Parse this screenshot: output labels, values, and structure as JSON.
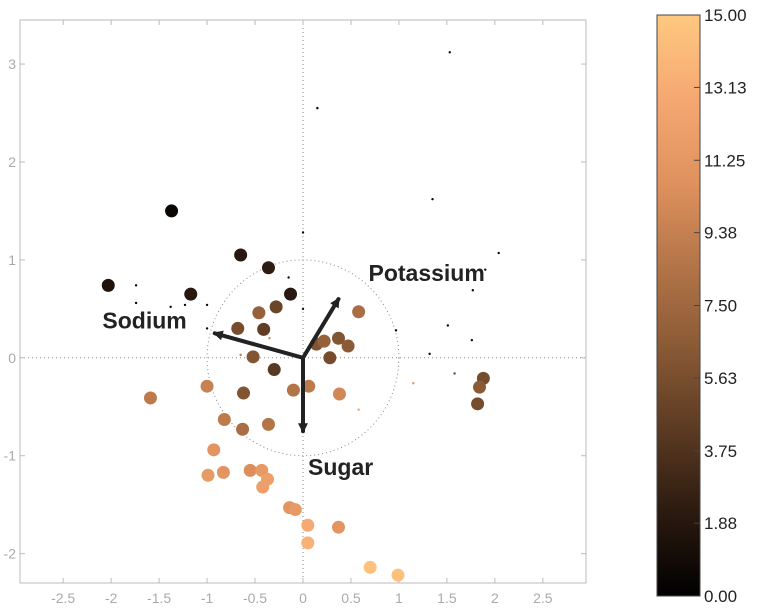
{
  "chart_data": {
    "type": "scatter",
    "title": "",
    "xlabel": "",
    "ylabel": "",
    "xlim": [
      -2.95,
      2.95
    ],
    "ylim": [
      -2.3,
      3.45
    ],
    "x_ticks": [
      "-2.5",
      "-2",
      "-1.5",
      "-1",
      "-0.5",
      "0",
      "0.5",
      "1",
      "1.5",
      "2",
      "2.5"
    ],
    "y_ticks": [
      "-2",
      "-1",
      "0",
      "1",
      "2",
      "3"
    ],
    "grid": false,
    "reference_lines": "dotted lines at x=0 and y=0",
    "unit_circle_radius": 1,
    "colorbar": {
      "min": 0,
      "max": 15,
      "ticks": [
        "0.00",
        "1.88",
        "3.75",
        "5.63",
        "7.50",
        "9.38",
        "11.25",
        "13.13",
        "15.00"
      ],
      "colors": [
        "#000000",
        "#2b1a10",
        "#5b3a22",
        "#8a5a36",
        "#b47548",
        "#e0925e",
        "#f5a872",
        "#ffc880"
      ]
    },
    "loading_vectors": [
      {
        "label": "Potassium",
        "x": 0.37,
        "y": 0.6
      },
      {
        "label": "Sodium",
        "x": -0.92,
        "y": 0.25
      },
      {
        "label": "Sugar",
        "x": 0.0,
        "y": -0.75
      }
    ],
    "points": [
      {
        "x": -1.37,
        "y": 1.5,
        "value": 0.5,
        "size": "large"
      },
      {
        "x": -2.03,
        "y": 0.74,
        "value": 1.5,
        "size": "large"
      },
      {
        "x": -1.17,
        "y": 0.65,
        "value": 2.0,
        "size": "large"
      },
      {
        "x": -0.65,
        "y": 1.05,
        "value": 2.0,
        "size": "large"
      },
      {
        "x": -0.36,
        "y": 0.92,
        "value": 2.2,
        "size": "large"
      },
      {
        "x": -0.13,
        "y": 0.65,
        "value": 2.0,
        "size": "large"
      },
      {
        "x": -0.28,
        "y": 0.52,
        "value": 5.0,
        "size": "large"
      },
      {
        "x": -0.46,
        "y": 0.46,
        "value": 7.0,
        "size": "large"
      },
      {
        "x": -0.68,
        "y": 0.3,
        "value": 5.5,
        "size": "large"
      },
      {
        "x": -0.41,
        "y": 0.29,
        "value": 4.5,
        "size": "large"
      },
      {
        "x": -0.52,
        "y": 0.01,
        "value": 6.0,
        "size": "large"
      },
      {
        "x": -0.3,
        "y": -0.12,
        "value": 4.2,
        "size": "large"
      },
      {
        "x": 0.14,
        "y": 0.14,
        "value": 6.0,
        "size": "large"
      },
      {
        "x": 0.22,
        "y": 0.17,
        "value": 7.0,
        "size": "large"
      },
      {
        "x": 0.28,
        "y": 0.0,
        "value": 5.5,
        "size": "large"
      },
      {
        "x": 0.37,
        "y": 0.2,
        "value": 6.0,
        "size": "large"
      },
      {
        "x": 0.47,
        "y": 0.12,
        "value": 6.5,
        "size": "large"
      },
      {
        "x": 0.58,
        "y": 0.47,
        "value": 8.0,
        "size": "large"
      },
      {
        "x": 0.06,
        "y": -0.29,
        "value": 9.0,
        "size": "large"
      },
      {
        "x": -0.1,
        "y": -0.33,
        "value": 8.5,
        "size": "large"
      },
      {
        "x": 0.38,
        "y": -0.37,
        "value": 10.0,
        "size": "large"
      },
      {
        "x": -0.62,
        "y": -0.36,
        "value": 6.0,
        "size": "large"
      },
      {
        "x": -1.0,
        "y": -0.29,
        "value": 9.5,
        "size": "large"
      },
      {
        "x": -1.59,
        "y": -0.41,
        "value": 9.0,
        "size": "large"
      },
      {
        "x": -0.82,
        "y": -0.63,
        "value": 9.0,
        "size": "large"
      },
      {
        "x": -0.63,
        "y": -0.73,
        "value": 8.0,
        "size": "large"
      },
      {
        "x": -0.36,
        "y": -0.68,
        "value": 8.5,
        "size": "large"
      },
      {
        "x": 1.88,
        "y": -0.21,
        "value": 5.5,
        "size": "large"
      },
      {
        "x": 1.84,
        "y": -0.3,
        "value": 6.5,
        "size": "large"
      },
      {
        "x": 1.82,
        "y": -0.47,
        "value": 5.5,
        "size": "large"
      },
      {
        "x": -0.93,
        "y": -0.94,
        "value": 11.0,
        "size": "large"
      },
      {
        "x": -0.99,
        "y": -1.2,
        "value": 11.5,
        "size": "large"
      },
      {
        "x": -0.83,
        "y": -1.17,
        "value": 11.0,
        "size": "large"
      },
      {
        "x": -0.55,
        "y": -1.15,
        "value": 10.5,
        "size": "large"
      },
      {
        "x": -0.43,
        "y": -1.15,
        "value": 11.5,
        "size": "large"
      },
      {
        "x": -0.37,
        "y": -1.24,
        "value": 12.0,
        "size": "large"
      },
      {
        "x": -0.42,
        "y": -1.32,
        "value": 12.0,
        "size": "large"
      },
      {
        "x": -0.14,
        "y": -1.53,
        "value": 11.0,
        "size": "large"
      },
      {
        "x": -0.08,
        "y": -1.55,
        "value": 11.5,
        "size": "large"
      },
      {
        "x": 0.05,
        "y": -1.71,
        "value": 13.0,
        "size": "large"
      },
      {
        "x": 0.05,
        "y": -1.89,
        "value": 13.5,
        "size": "large"
      },
      {
        "x": 0.37,
        "y": -1.73,
        "value": 11.0,
        "size": "large"
      },
      {
        "x": 0.7,
        "y": -2.14,
        "value": 14.5,
        "size": "large"
      },
      {
        "x": 0.99,
        "y": -2.22,
        "value": 14.5,
        "size": "large"
      },
      {
        "x": 1.53,
        "y": 3.12,
        "value": 0.3,
        "size": "small"
      },
      {
        "x": 0.15,
        "y": 2.55,
        "value": 0.3,
        "size": "small"
      },
      {
        "x": 1.35,
        "y": 1.62,
        "value": 0.5,
        "size": "small"
      },
      {
        "x": 0.0,
        "y": 1.28,
        "value": 0.5,
        "size": "small"
      },
      {
        "x": 2.04,
        "y": 1.07,
        "value": 0.5,
        "size": "small"
      },
      {
        "x": 1.9,
        "y": 0.9,
        "value": 0.5,
        "size": "small"
      },
      {
        "x": 1.77,
        "y": 0.69,
        "value": 0.5,
        "size": "small"
      },
      {
        "x": 1.51,
        "y": 0.33,
        "value": 0.8,
        "size": "small"
      },
      {
        "x": 1.76,
        "y": 0.18,
        "value": 0.8,
        "size": "small"
      },
      {
        "x": 0.97,
        "y": 0.28,
        "value": 1.0,
        "size": "small"
      },
      {
        "x": 1.32,
        "y": 0.04,
        "value": 1.0,
        "size": "small"
      },
      {
        "x": 1.58,
        "y": -0.16,
        "value": 5.0,
        "size": "small"
      },
      {
        "x": 1.15,
        "y": -0.26,
        "value": 11.0,
        "size": "small"
      },
      {
        "x": 0.58,
        "y": -0.53,
        "value": 12.0,
        "size": "small"
      },
      {
        "x": -1.74,
        "y": 0.74,
        "value": 0.5,
        "size": "small"
      },
      {
        "x": -1.74,
        "y": 0.56,
        "value": 0.5,
        "size": "small"
      },
      {
        "x": -1.68,
        "y": 0.45,
        "value": 0.5,
        "size": "small"
      },
      {
        "x": -1.38,
        "y": 0.52,
        "value": 0.5,
        "size": "small"
      },
      {
        "x": -1.23,
        "y": 0.54,
        "value": 0.5,
        "size": "small"
      },
      {
        "x": -1.0,
        "y": 0.54,
        "value": 0.5,
        "size": "small"
      },
      {
        "x": -1.0,
        "y": 0.3,
        "value": 0.5,
        "size": "small"
      },
      {
        "x": -0.15,
        "y": 0.82,
        "value": 1.0,
        "size": "small"
      },
      {
        "x": 0.0,
        "y": 0.5,
        "value": 1.0,
        "size": "small"
      },
      {
        "x": -0.35,
        "y": 0.2,
        "value": 10.0,
        "size": "small"
      },
      {
        "x": -0.65,
        "y": 0.03,
        "value": 9.0,
        "size": "small"
      }
    ]
  }
}
